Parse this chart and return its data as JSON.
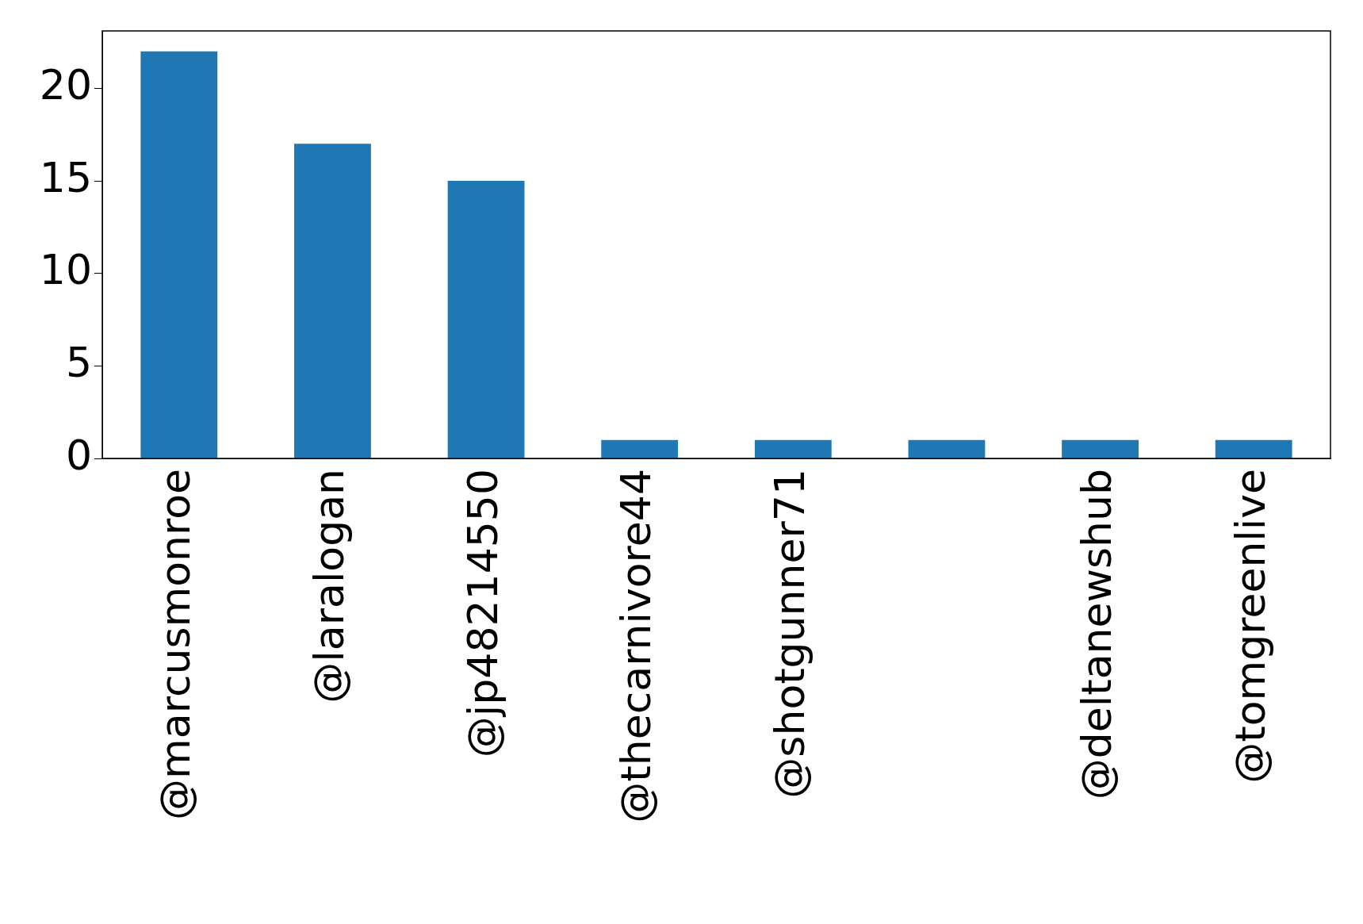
{
  "chart_data": {
    "type": "bar",
    "categories": [
      "@marcusmonroe",
      "@laralogan",
      "@jp48214550",
      "@thecarnivore44",
      "@shotgunner71",
      null,
      "@deltanewshub",
      "@tomgreenlive"
    ],
    "values": [
      22,
      17,
      15,
      1,
      1,
      1,
      1,
      1
    ],
    "color": "#1f77b4",
    "ylim": [
      0,
      23.1
    ],
    "yticks": [
      0,
      5,
      10,
      15,
      20
    ],
    "grid": false,
    "legend": false
  }
}
